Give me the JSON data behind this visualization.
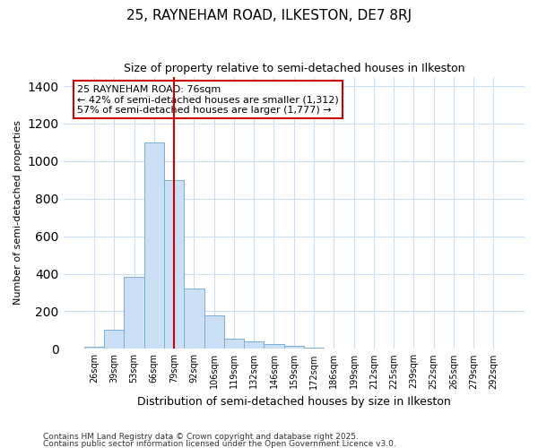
{
  "title_line1": "25, RAYNEHAM ROAD, ILKESTON, DE7 8RJ",
  "title_line2": "Size of property relative to semi-detached houses in Ilkeston",
  "xlabel": "Distribution of semi-detached houses by size in Ilkeston",
  "ylabel": "Number of semi-detached properties",
  "bar_labels": [
    "26sqm",
    "39sqm",
    "53sqm",
    "66sqm",
    "79sqm",
    "92sqm",
    "106sqm",
    "119sqm",
    "132sqm",
    "146sqm",
    "159sqm",
    "172sqm",
    "186sqm",
    "199sqm",
    "212sqm",
    "225sqm",
    "239sqm",
    "252sqm",
    "265sqm",
    "279sqm",
    "292sqm"
  ],
  "bar_values": [
    12,
    100,
    385,
    1100,
    900,
    320,
    180,
    55,
    40,
    25,
    15,
    5,
    3,
    1,
    0,
    0,
    0,
    0,
    0,
    0,
    0
  ],
  "bar_color": "#cce0f5",
  "bar_edge_color": "#7ab0d8",
  "red_line_x": 4.0,
  "annotation_title": "25 RAYNEHAM ROAD: 76sqm",
  "annotation_line1": "← 42% of semi-detached houses are smaller (1,312)",
  "annotation_line2": "57% of semi-detached houses are larger (1,777) →",
  "ylim": [
    0,
    1450
  ],
  "yticks": [
    0,
    200,
    400,
    600,
    800,
    1000,
    1200,
    1400
  ],
  "footnote1": "Contains HM Land Registry data © Crown copyright and database right 2025.",
  "footnote2": "Contains public sector information licensed under the Open Government Licence v3.0.",
  "background_color": "#ffffff",
  "plot_bg_color": "#ffffff",
  "grid_color": "#c8dff5",
  "annotation_box_color": "#ffffff",
  "annotation_box_edge": "#cc0000",
  "red_line_color": "#cc0000",
  "title1_fontsize": 11,
  "title2_fontsize": 9,
  "ylabel_fontsize": 8,
  "xlabel_fontsize": 9,
  "tick_fontsize": 7,
  "footnote_fontsize": 6.5,
  "annotation_fontsize": 8
}
